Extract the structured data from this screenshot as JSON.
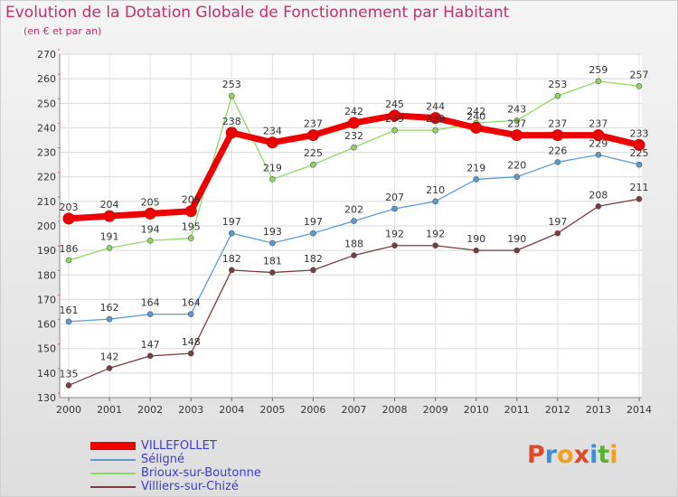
{
  "title": "Evolution de la Dotation Globale de Fonctionnement par Habitant",
  "subtitle": "(en € et par an)",
  "logo": {
    "text": "Proxiti",
    "colors": [
      "#e0482a",
      "#3c8ed8",
      "#f0a020",
      "#e0482a",
      "#3c8ed8",
      "#58b030",
      "#f0a020"
    ]
  },
  "chart_data": {
    "type": "line",
    "x": [
      "2000",
      "2001",
      "2002",
      "2003",
      "2004",
      "2005",
      "2006",
      "2007",
      "2008",
      "2009",
      "2010",
      "2011",
      "2012",
      "2013",
      "2014"
    ],
    "ylim": [
      130,
      270
    ],
    "yticks": [
      130,
      140,
      150,
      160,
      170,
      180,
      190,
      200,
      210,
      220,
      230,
      240,
      250,
      260,
      270
    ],
    "grid": true,
    "legend_position": "bottom-left",
    "series": [
      {
        "name": "VILLEFOLLET",
        "color": "#ee0000",
        "values": [
          203,
          204,
          205,
          206,
          238,
          234,
          237,
          242,
          245,
          244,
          240,
          237,
          237,
          237,
          233
        ],
        "labels": [
          "203",
          "204",
          "205",
          "206",
          "238",
          "234",
          "237",
          "242",
          "245",
          "244",
          "240",
          "237",
          "237",
          "237",
          "233"
        ]
      },
      {
        "name": "Séligné",
        "color": "#5b9bd5",
        "values": [
          161,
          162,
          164,
          164,
          197,
          193,
          197,
          202,
          207,
          210,
          219,
          220,
          226,
          229,
          225
        ],
        "labels": [
          "161",
          "162",
          "164",
          "164",
          "197",
          "193",
          "197",
          "202",
          "207",
          "210",
          "219",
          "220",
          "226",
          "229",
          "225"
        ]
      },
      {
        "name": "Brioux-sur-Boutonne",
        "color": "#8ed860",
        "values": [
          186,
          191,
          194,
          195,
          253,
          219,
          225,
          232,
          239,
          239,
          242,
          243,
          253,
          259,
          257
        ],
        "labels": [
          "186",
          "191",
          "194",
          "195",
          "253",
          "219",
          "225",
          "232",
          "239",
          "239",
          "242",
          "243",
          "253",
          "259",
          "257"
        ]
      },
      {
        "name": "Villiers-sur-Chizé",
        "color": "#7a3b3b",
        "values": [
          135,
          142,
          147,
          148,
          182,
          181,
          182,
          188,
          192,
          192,
          190,
          190,
          197,
          208,
          211
        ],
        "labels": [
          "135",
          "142",
          "147",
          "148",
          "182",
          "181",
          "182",
          "188",
          "192",
          "192",
          "190",
          "190",
          "197",
          "208",
          "211"
        ]
      }
    ]
  }
}
